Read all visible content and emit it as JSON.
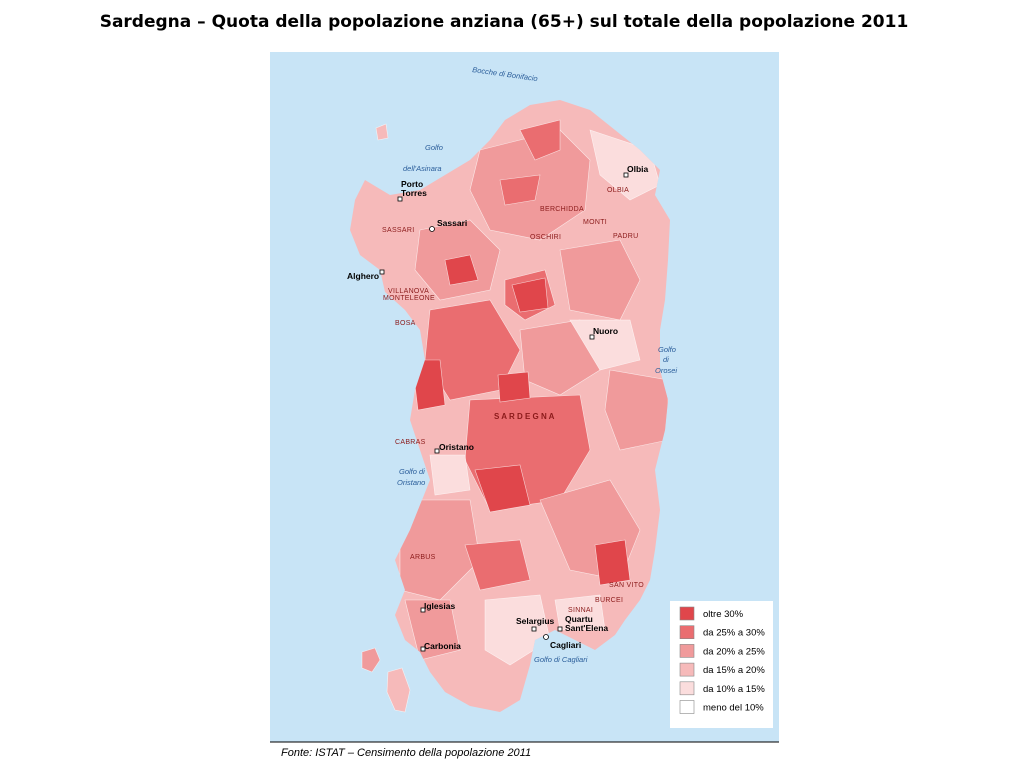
{
  "title": "Sardegna – Quota della popolazione anziana (65+) sul totale della popolazione 2011",
  "map": {
    "places": [
      "Porto",
      "Torres",
      "Sassari",
      "Olbia",
      "Alghero",
      "Nuoro",
      "Oristano",
      "Iglesias",
      "Selargius",
      "Quartu",
      "Sant'Elena",
      "Cagliari",
      "Carbonia"
    ],
    "municipalities": [
      "SASSARI",
      "OLBIA",
      "BERCHIDDA",
      "MONTI",
      "OSCHIRI",
      "PADRU",
      "VILLANOVA",
      "MONTELEONE",
      "BOSA",
      "CABRAS",
      "ARBUS",
      "SAN VITO",
      "BURCEI",
      "SINNAI"
    ],
    "water": [
      "Bocche di Bonifacio",
      "Golfo",
      "dell'Asinara",
      "Golfo",
      "di",
      "Orosei",
      "Golfo di",
      "Oristano",
      "Golfo di Cagliari"
    ],
    "region": "S A R D E G N A"
  },
  "legend": [
    {
      "label": "oltre 30%",
      "color": "#e0464b"
    },
    {
      "label": "da 25% a 30%",
      "color": "#ea6d70"
    },
    {
      "label": "da 20% a 25%",
      "color": "#f09a9b"
    },
    {
      "label": "da 15% a 20%",
      "color": "#f6baba"
    },
    {
      "label": "da 10% a 15%",
      "color": "#fbdddd"
    },
    {
      "label": "meno del 10%",
      "color": "#ffffff"
    }
  ],
  "source": "Fonte: ISTAT – Censimento della popolazione 2011"
}
